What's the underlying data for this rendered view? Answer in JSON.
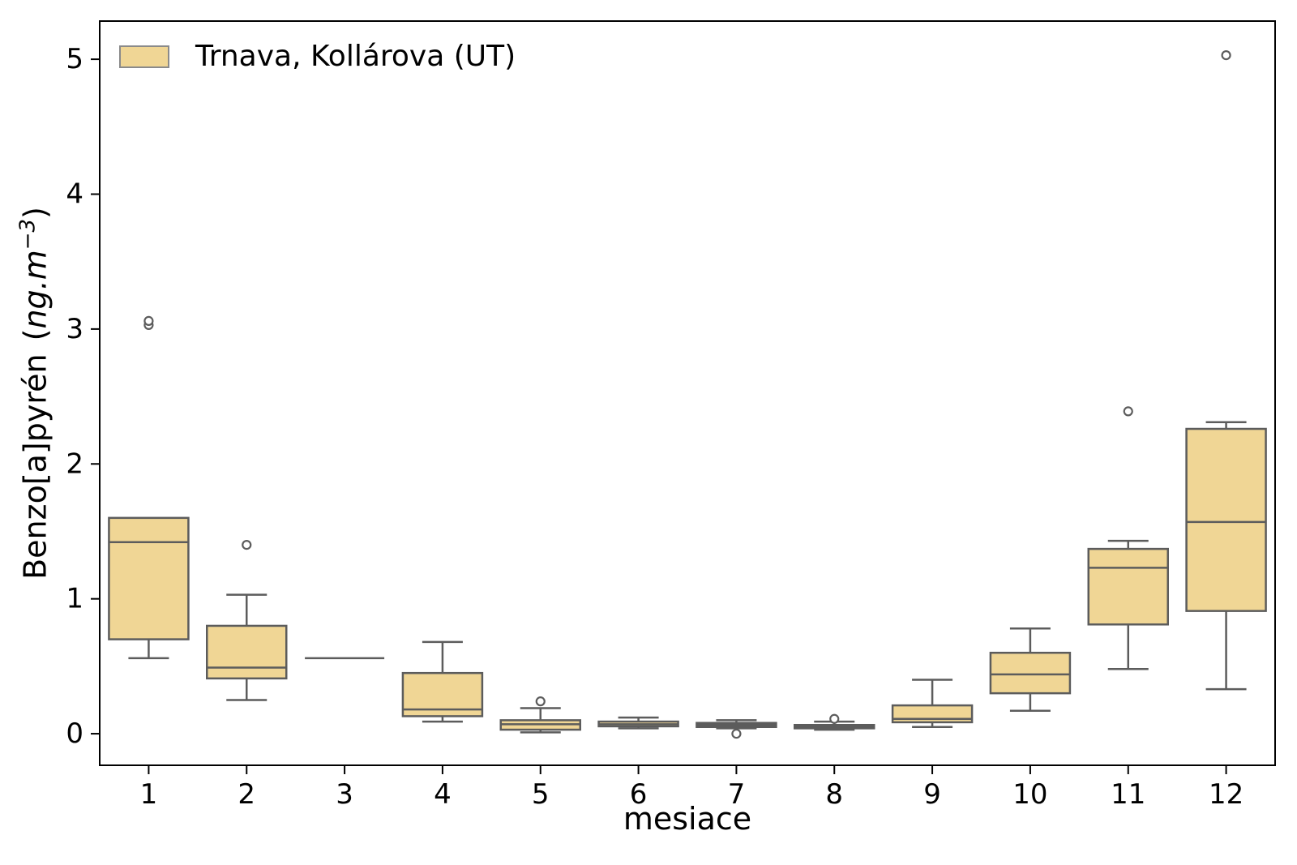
{
  "chart_data": {
    "type": "boxplot",
    "title": "",
    "xlabel": "mesiace",
    "ylabel": "Benzo[a]pyrén (ng.m⁻³)",
    "legend": [
      {
        "label": "Trnava, Kollárova (UT)",
        "color": "#F0D695"
      }
    ],
    "legend_position": "upper left",
    "grid": false,
    "categories": [
      "1",
      "2",
      "3",
      "4",
      "5",
      "6",
      "7",
      "8",
      "9",
      "10",
      "11",
      "12"
    ],
    "yticks": [
      0,
      1,
      2,
      3,
      4,
      5
    ],
    "ylim": [
      -0.234,
      5.283
    ],
    "colors": {
      "box_fill": "#F0D695",
      "box_edge": "#5c5c5c",
      "axis": "#000000"
    },
    "boxes": [
      {
        "cat": "1",
        "whisker_low": 0.56,
        "q1": 0.7,
        "median": 1.42,
        "q3": 1.6,
        "whisker_high": 1.6,
        "outliers": [
          3.03,
          3.06
        ]
      },
      {
        "cat": "2",
        "whisker_low": 0.25,
        "q1": 0.41,
        "median": 0.49,
        "q3": 0.8,
        "whisker_high": 1.03,
        "outliers": [
          1.4
        ]
      },
      {
        "cat": "3",
        "whisker_low": 0.56,
        "q1": 0.56,
        "median": 0.56,
        "q3": 0.56,
        "whisker_high": 0.56,
        "outliers": []
      },
      {
        "cat": "4",
        "whisker_low": 0.09,
        "q1": 0.13,
        "median": 0.18,
        "q3": 0.45,
        "whisker_high": 0.68,
        "outliers": []
      },
      {
        "cat": "5",
        "whisker_low": 0.01,
        "q1": 0.03,
        "median": 0.07,
        "q3": 0.1,
        "whisker_high": 0.19,
        "outliers": [
          0.24
        ]
      },
      {
        "cat": "6",
        "whisker_low": 0.04,
        "q1": 0.055,
        "median": 0.07,
        "q3": 0.09,
        "whisker_high": 0.12,
        "outliers": []
      },
      {
        "cat": "7",
        "whisker_low": 0.04,
        "q1": 0.05,
        "median": 0.065,
        "q3": 0.08,
        "whisker_high": 0.1,
        "outliers": [
          0.0
        ]
      },
      {
        "cat": "8",
        "whisker_low": 0.03,
        "q1": 0.04,
        "median": 0.05,
        "q3": 0.065,
        "whisker_high": 0.09,
        "outliers": [
          0.11
        ]
      },
      {
        "cat": "9",
        "whisker_low": 0.05,
        "q1": 0.085,
        "median": 0.11,
        "q3": 0.21,
        "whisker_high": 0.4,
        "outliers": []
      },
      {
        "cat": "10",
        "whisker_low": 0.17,
        "q1": 0.3,
        "median": 0.44,
        "q3": 0.6,
        "whisker_high": 0.78,
        "outliers": []
      },
      {
        "cat": "11",
        "whisker_low": 0.48,
        "q1": 0.81,
        "median": 1.23,
        "q3": 1.37,
        "whisker_high": 1.43,
        "outliers": [
          2.39
        ]
      },
      {
        "cat": "12",
        "whisker_low": 0.33,
        "q1": 0.91,
        "median": 1.57,
        "q3": 2.26,
        "whisker_high": 2.31,
        "outliers": [
          5.03
        ]
      }
    ]
  },
  "labels": {
    "ylabel_name": "Benzo[a]pyrén",
    "ylabel_open": "(",
    "ylabel_unit": "ng.m",
    "ylabel_sup": "−3",
    "ylabel_close": ")"
  }
}
